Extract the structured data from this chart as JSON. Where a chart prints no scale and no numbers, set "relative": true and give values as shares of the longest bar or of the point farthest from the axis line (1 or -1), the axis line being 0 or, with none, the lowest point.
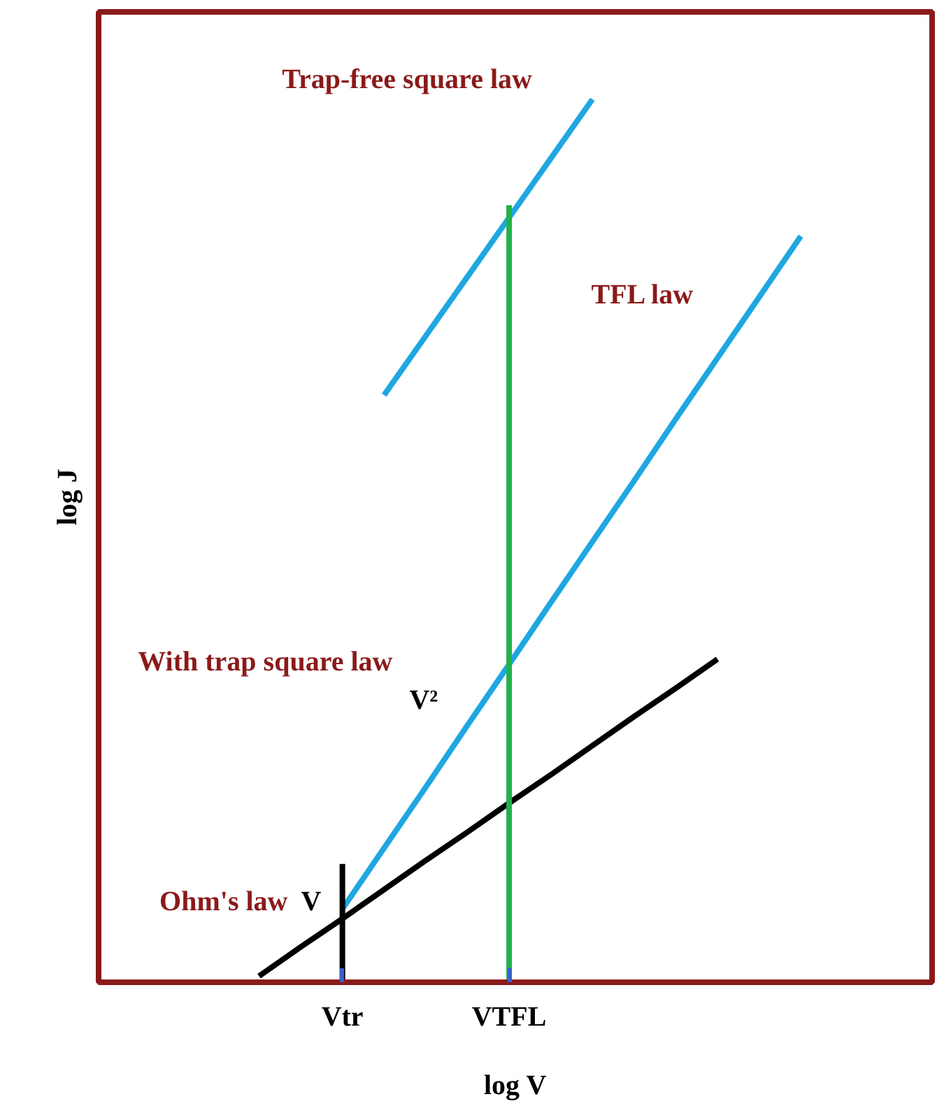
{
  "chart_data": {
    "type": "line",
    "relative": true,
    "xlabel": "log V",
    "ylabel": "log J",
    "categories": [
      null,
      null,
      null,
      null,
      null,
      "Vtr",
      null,
      null,
      null,
      "VTFL",
      null,
      null,
      null,
      null,
      null,
      null,
      null,
      null,
      null,
      null
    ],
    "grid": false,
    "marker": "none",
    "line_style": "solid",
    "series": [
      {
        "color": "#1ea7e1",
        "values": [
          null,
          null,
          null,
          null,
          null,
          null,
          0.665,
          0.732,
          0.799,
          0.866,
          0.933,
          1.0,
          null,
          null,
          null,
          null,
          null,
          null,
          null,
          null
        ]
      },
      {
        "color": "#1ea7e1",
        "values": [
          null,
          null,
          null,
          null,
          null,
          0.083,
          0.152,
          0.221,
          0.291,
          0.36,
          0.43,
          0.499,
          0.568,
          0.638,
          0.707,
          0.776,
          0.845,
          null,
          null,
          null
        ]
      },
      {
        "color": "#000000",
        "values": [
          null,
          null,
          null,
          0.007,
          0.04,
          0.072,
          0.105,
          0.138,
          0.17,
          0.203,
          0.235,
          0.268,
          0.301,
          0.333,
          0.366,
          null,
          null,
          null,
          null,
          null
        ]
      },
      {
        "color": "#22b14c",
        "x": [
          "VTFL",
          "VTFL"
        ],
        "values": [
          0.0,
          0.88
        ]
      },
      {
        "color": "#000000",
        "x": [
          "Vtr",
          "Vtr"
        ],
        "values": [
          0.0,
          0.134
        ]
      }
    ],
    "annotations": [
      "Trap-free square law",
      "TFL law",
      "With trap square law",
      "V²",
      "Ohm's law",
      "V"
    ]
  }
}
